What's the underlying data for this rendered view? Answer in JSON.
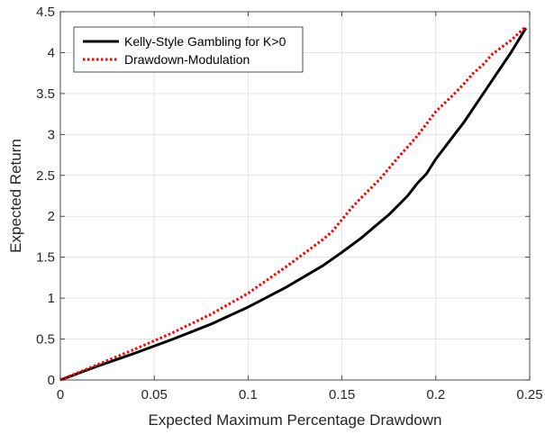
{
  "chart_data": {
    "type": "line",
    "title": "",
    "xlabel": "Expected Maximum Percentage Drawdown",
    "ylabel": "Expected Return",
    "xlim": [
      0,
      0.25
    ],
    "ylim": [
      0,
      4.5
    ],
    "xticks": [
      0,
      0.05,
      0.1,
      0.15,
      0.2,
      0.25
    ],
    "xtick_labels": [
      "0",
      "0.05",
      "0.1",
      "0.15",
      "0.2",
      "0.25"
    ],
    "yticks": [
      0,
      0.5,
      1,
      1.5,
      2,
      2.5,
      3,
      3.5,
      4,
      4.5
    ],
    "ytick_labels": [
      "0",
      "0.5",
      "1",
      "1.5",
      "2",
      "2.5",
      "3",
      "3.5",
      "4",
      "4.5"
    ],
    "grid": true,
    "legend_position": "top-left",
    "series": [
      {
        "name": "Kelly-Style Gambling for K>0",
        "color": "#000000",
        "style": "solid",
        "x": [
          0,
          0.02,
          0.04,
          0.06,
          0.08,
          0.1,
          0.12,
          0.14,
          0.15,
          0.16,
          0.175,
          0.185,
          0.19,
          0.195,
          0.2,
          0.205,
          0.21,
          0.215,
          0.22,
          0.23,
          0.24,
          0.248
        ],
        "y": [
          0,
          0.17,
          0.33,
          0.5,
          0.68,
          0.89,
          1.13,
          1.4,
          1.56,
          1.73,
          2.02,
          2.25,
          2.4,
          2.52,
          2.7,
          2.85,
          3.0,
          3.15,
          3.32,
          3.66,
          4.0,
          4.3
        ]
      },
      {
        "name": "Drawdown-Modulation",
        "color": "#ff0000",
        "style": "dotted",
        "x": [
          0,
          0.02,
          0.04,
          0.06,
          0.08,
          0.1,
          0.12,
          0.14,
          0.145,
          0.15,
          0.155,
          0.16,
          0.17,
          0.18,
          0.19,
          0.2,
          0.21,
          0.215,
          0.22,
          0.225,
          0.23,
          0.24,
          0.248
        ],
        "y": [
          0,
          0.19,
          0.38,
          0.58,
          0.8,
          1.06,
          1.38,
          1.72,
          1.82,
          1.96,
          2.1,
          2.22,
          2.45,
          2.72,
          2.98,
          3.28,
          3.5,
          3.62,
          3.75,
          3.85,
          3.98,
          4.15,
          4.32
        ]
      }
    ]
  }
}
